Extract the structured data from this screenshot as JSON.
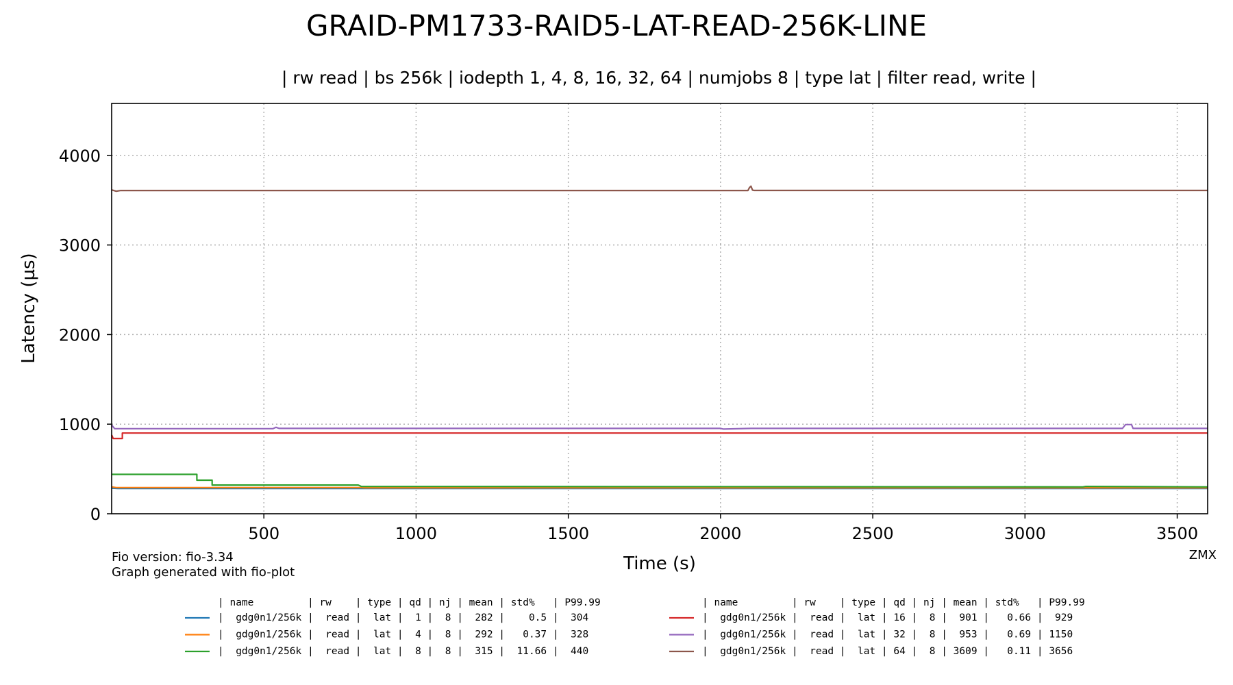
{
  "chart_data": {
    "type": "line",
    "title": "GRAID-PM1733-RAID5-LAT-READ-256K-LINE",
    "subtitle": "| rw read | bs 256k | iodepth 1, 4, 8, 16, 32, 64 | numjobs 8 | type lat | filter read, write |",
    "xlabel": "Time (s)",
    "ylabel": "Latency (µs)",
    "xlim": [
      0,
      3600
    ],
    "ylim": [
      0,
      4580
    ],
    "xticks": [
      500,
      1000,
      1500,
      2000,
      2500,
      3000,
      3500
    ],
    "yticks": [
      0,
      1000,
      2000,
      3000,
      4000
    ],
    "grid": true,
    "footer_left": [
      "Fio version: fio-3.34",
      "Graph generated with fio-plot"
    ],
    "footer_right": "ZMX",
    "legend_header": "| name         | rw    | type | qd | nj | mean | std%   | P99.99",
    "series": [
      {
        "color": "#1f77b4",
        "legend": "|  gdg0n1/256k |  read |  lat |  1 |  8 |  282 |    0.5 |  304",
        "points": [
          [
            0,
            285
          ],
          [
            20,
            282
          ],
          [
            3600,
            282
          ]
        ]
      },
      {
        "color": "#ff7f0e",
        "legend": "|  gdg0n1/256k |  read |  lat |  4 |  8 |  292 |   0.37 |  328",
        "points": [
          [
            0,
            300
          ],
          [
            15,
            292
          ],
          [
            820,
            292
          ],
          [
            830,
            290
          ],
          [
            3600,
            290
          ]
        ]
      },
      {
        "color": "#2ca02c",
        "legend": "|  gdg0n1/256k |  read |  lat |  8 |  8 |  315 |  11.66 |  440",
        "points": [
          [
            0,
            440
          ],
          [
            280,
            440
          ],
          [
            280,
            375
          ],
          [
            330,
            375
          ],
          [
            330,
            320
          ],
          [
            810,
            320
          ],
          [
            820,
            305
          ],
          [
            3190,
            300
          ],
          [
            3200,
            305
          ],
          [
            3600,
            300
          ]
        ]
      },
      {
        "color": "#d62728",
        "legend": "|  gdg0n1/256k |  read |  lat | 16 |  8 |  901 |   0.66 |  929",
        "points": [
          [
            0,
            880
          ],
          [
            5,
            840
          ],
          [
            35,
            840
          ],
          [
            35,
            901
          ],
          [
            3600,
            901
          ]
        ]
      },
      {
        "color": "#9467bd",
        "legend": "|  gdg0n1/256k |  read |  lat | 32 |  8 |  953 |   0.69 | 1150",
        "points": [
          [
            0,
            990
          ],
          [
            10,
            950
          ],
          [
            530,
            950
          ],
          [
            540,
            965
          ],
          [
            550,
            953
          ],
          [
            2000,
            953
          ],
          [
            2010,
            945
          ],
          [
            2100,
            953
          ],
          [
            3320,
            953
          ],
          [
            3330,
            995
          ],
          [
            3350,
            995
          ],
          [
            3355,
            953
          ],
          [
            3600,
            953
          ]
        ]
      },
      {
        "color": "#8c564b",
        "legend": "|  gdg0n1/256k |  read |  lat | 64 |  8 | 3609 |   0.11 | 3656",
        "points": [
          [
            0,
            3615
          ],
          [
            15,
            3600
          ],
          [
            30,
            3608
          ],
          [
            2090,
            3608
          ],
          [
            2095,
            3640
          ],
          [
            2100,
            3656
          ],
          [
            2105,
            3612
          ],
          [
            2110,
            3609
          ],
          [
            3600,
            3609
          ]
        ]
      }
    ]
  }
}
